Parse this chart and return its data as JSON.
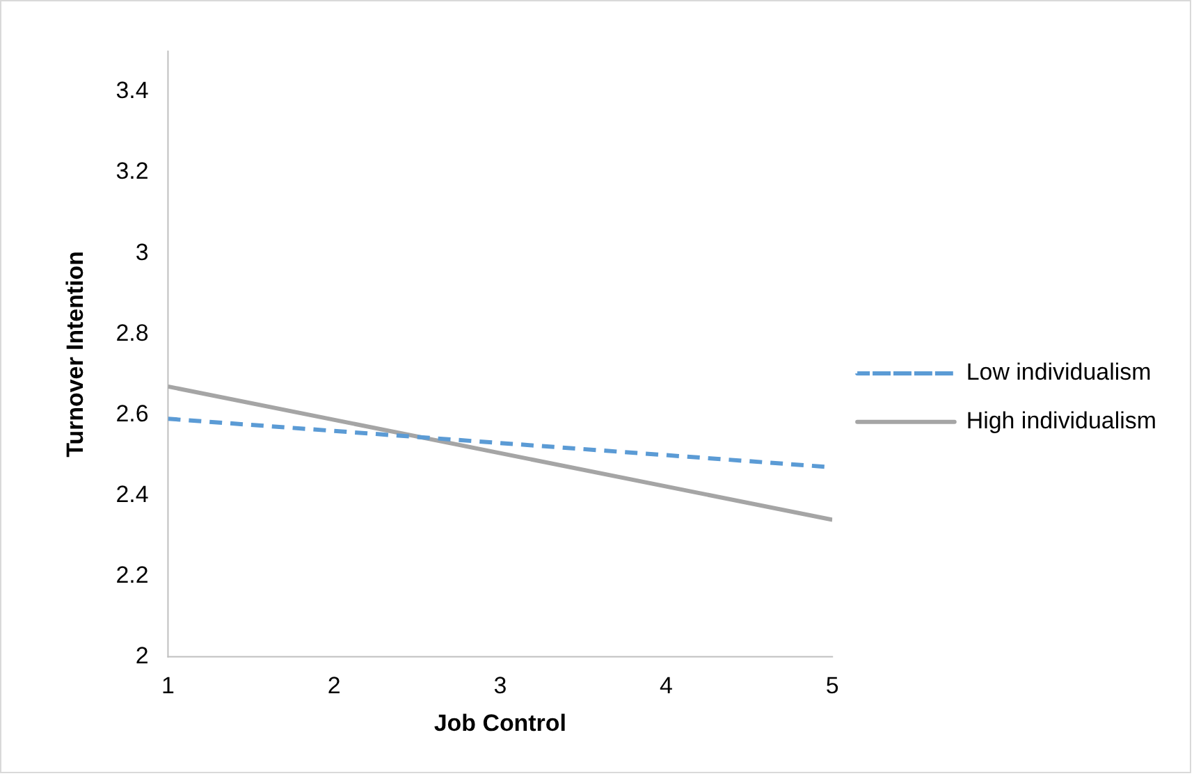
{
  "chart_data": {
    "type": "line",
    "xlabel": "Job Control",
    "ylabel": "Turnover Intention",
    "x": [
      1,
      5
    ],
    "series": [
      {
        "name": "Low individualism",
        "color": "#5b9bd5",
        "values": [
          2.59,
          2.47
        ],
        "line_style": "dashed"
      },
      {
        "name": "High individualism",
        "color": "#a5a5a5",
        "values": [
          2.67,
          2.34
        ],
        "line_style": "solid"
      }
    ],
    "xlim": [
      1,
      5
    ],
    "xticks": [
      1,
      2,
      3,
      4,
      5
    ],
    "ylim": [
      2,
      3.5
    ],
    "yticks": [
      2,
      2.2,
      2.4,
      2.6,
      2.8,
      3,
      3.2,
      3.4
    ],
    "grid": false,
    "legend": "right",
    "marker": "none"
  }
}
